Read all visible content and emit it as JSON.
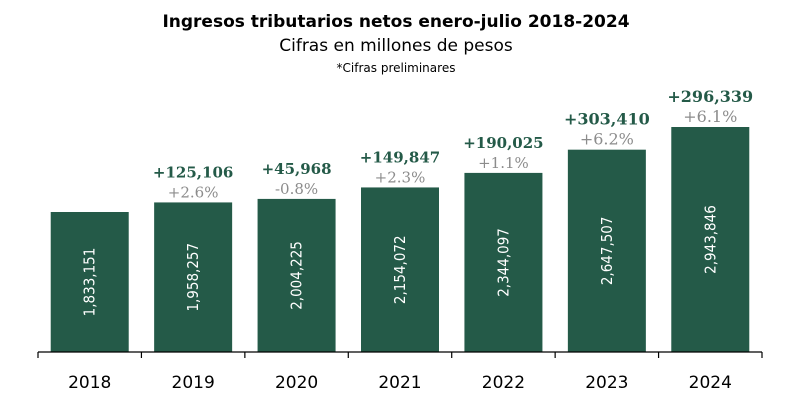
{
  "colors": {
    "bar": "#245a48",
    "increase": "#245a48",
    "percent": "#8c8c8c",
    "axis": "#000000"
  },
  "chart_data": {
    "type": "bar",
    "title": "Ingresos tributarios netos enero-julio 2018-2024",
    "subtitle": "Cifras en millones de pesos",
    "note": "*Cifras preliminares",
    "categories": [
      "2018",
      "2019",
      "2020",
      "2021",
      "2022",
      "2023",
      "2024"
    ],
    "values": [
      1833151,
      1958257,
      2004225,
      2154072,
      2344097,
      2647507,
      2943846
    ],
    "value_labels": [
      "1,833,151",
      "1,958,257",
      "2,004,225",
      "2,154,072",
      "2,344,097",
      "2,647,507",
      "2,943,846"
    ],
    "increase_labels": [
      "",
      "+125,106",
      "+45,968",
      "+149,847",
      "+190,025",
      "+303,410",
      "+296,339"
    ],
    "percent_labels": [
      "",
      "+2.6%",
      "-0.8%",
      "+2.3%",
      "+1.1%",
      "+6.2%",
      "+6.1%"
    ],
    "grid": false,
    "legend": "none"
  }
}
